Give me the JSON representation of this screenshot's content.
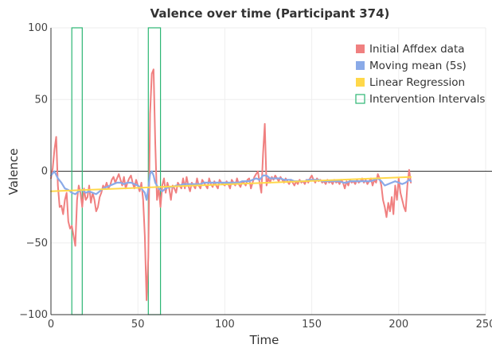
{
  "chart_data": {
    "type": "line",
    "title": "Valence over time (Participant 374)",
    "xlabel": "Time",
    "ylabel": "Valence",
    "xlim": [
      0,
      250
    ],
    "ylim": [
      -100,
      100
    ],
    "x_ticks": [
      0,
      50,
      100,
      150,
      200,
      250
    ],
    "x_tick_labels": [
      "0",
      "50",
      "100",
      "150",
      "200",
      "250"
    ],
    "y_ticks": [
      -100,
      -50,
      0,
      50,
      100
    ],
    "y_tick_labels": [
      "−100",
      "−50",
      "0",
      "50",
      "100"
    ],
    "grid": true,
    "legend_position": "top-right",
    "series": [
      {
        "name": "Initial Affdex data",
        "color": "#f08080",
        "style": "line",
        "points": [
          [
            0,
            -5
          ],
          [
            1,
            2
          ],
          [
            2,
            15
          ],
          [
            3,
            24
          ],
          [
            4,
            -10
          ],
          [
            5,
            -25
          ],
          [
            6,
            -24
          ],
          [
            7,
            -30
          ],
          [
            8,
            -20
          ],
          [
            9,
            -15
          ],
          [
            10,
            -35
          ],
          [
            11,
            -40
          ],
          [
            12,
            -38
          ],
          [
            13,
            -45
          ],
          [
            14,
            -52
          ],
          [
            15,
            -20
          ],
          [
            16,
            -10
          ],
          [
            17,
            -15
          ],
          [
            18,
            -25
          ],
          [
            19,
            -12
          ],
          [
            20,
            -20
          ],
          [
            21,
            -18
          ],
          [
            22,
            -10
          ],
          [
            23,
            -22
          ],
          [
            24,
            -15
          ],
          [
            25,
            -20
          ],
          [
            26,
            -28
          ],
          [
            27,
            -25
          ],
          [
            28,
            -18
          ],
          [
            29,
            -15
          ],
          [
            30,
            -10
          ],
          [
            31,
            -12
          ],
          [
            32,
            -8
          ],
          [
            33,
            -12
          ],
          [
            34,
            -10
          ],
          [
            35,
            -6
          ],
          [
            36,
            -4
          ],
          [
            37,
            -8
          ],
          [
            38,
            -5
          ],
          [
            39,
            -2
          ],
          [
            40,
            -6
          ],
          [
            41,
            -10
          ],
          [
            42,
            -4
          ],
          [
            43,
            -12
          ],
          [
            44,
            -8
          ],
          [
            45,
            -5
          ],
          [
            46,
            -3
          ],
          [
            47,
            -8
          ],
          [
            48,
            -12
          ],
          [
            49,
            -6
          ],
          [
            50,
            -10
          ],
          [
            51,
            -14
          ],
          [
            52,
            -8
          ],
          [
            53,
            -20
          ],
          [
            54,
            -45
          ],
          [
            55,
            -90
          ],
          [
            56,
            -60
          ],
          [
            57,
            40
          ],
          [
            58,
            68
          ],
          [
            59,
            71
          ],
          [
            60,
            20
          ],
          [
            61,
            -20
          ],
          [
            62,
            -12
          ],
          [
            63,
            -25
          ],
          [
            64,
            -10
          ],
          [
            65,
            -5
          ],
          [
            66,
            -15
          ],
          [
            67,
            -8
          ],
          [
            68,
            -12
          ],
          [
            69,
            -20
          ],
          [
            70,
            -10
          ],
          [
            71,
            -12
          ],
          [
            72,
            -15
          ],
          [
            73,
            -8
          ],
          [
            74,
            -10
          ],
          [
            75,
            -12
          ],
          [
            76,
            -5
          ],
          [
            77,
            -12
          ],
          [
            78,
            -4
          ],
          [
            79,
            -10
          ],
          [
            80,
            -14
          ],
          [
            81,
            -8
          ],
          [
            82,
            -10
          ],
          [
            83,
            -12
          ],
          [
            84,
            -5
          ],
          [
            85,
            -10
          ],
          [
            86,
            -12
          ],
          [
            87,
            -6
          ],
          [
            88,
            -8
          ],
          [
            89,
            -10
          ],
          [
            90,
            -12
          ],
          [
            91,
            -5
          ],
          [
            92,
            -9
          ],
          [
            93,
            -11
          ],
          [
            94,
            -7
          ],
          [
            95,
            -10
          ],
          [
            96,
            -12
          ],
          [
            97,
            -6
          ],
          [
            98,
            -8
          ],
          [
            99,
            -9
          ],
          [
            100,
            -10
          ],
          [
            101,
            -7
          ],
          [
            102,
            -9
          ],
          [
            103,
            -12
          ],
          [
            104,
            -6
          ],
          [
            105,
            -8
          ],
          [
            106,
            -10
          ],
          [
            107,
            -5
          ],
          [
            108,
            -9
          ],
          [
            109,
            -11
          ],
          [
            110,
            -7
          ],
          [
            111,
            -8
          ],
          [
            112,
            -10
          ],
          [
            113,
            -6
          ],
          [
            114,
            -5
          ],
          [
            115,
            -12
          ],
          [
            116,
            -8
          ],
          [
            117,
            -4
          ],
          [
            118,
            -2
          ],
          [
            119,
            0
          ],
          [
            120,
            -8
          ],
          [
            121,
            -15
          ],
          [
            122,
            12
          ],
          [
            123,
            33
          ],
          [
            124,
            -10
          ],
          [
            125,
            -5
          ],
          [
            126,
            -8
          ],
          [
            127,
            -4
          ],
          [
            128,
            -6
          ],
          [
            129,
            -3
          ],
          [
            130,
            -5
          ],
          [
            131,
            -7
          ],
          [
            132,
            -4
          ],
          [
            133,
            -6
          ],
          [
            134,
            -8
          ],
          [
            135,
            -5
          ],
          [
            136,
            -7
          ],
          [
            137,
            -9
          ],
          [
            138,
            -6
          ],
          [
            139,
            -8
          ],
          [
            140,
            -10
          ],
          [
            141,
            -7
          ],
          [
            142,
            -9
          ],
          [
            143,
            -6
          ],
          [
            144,
            -8
          ],
          [
            145,
            -7
          ],
          [
            146,
            -9
          ],
          [
            147,
            -6
          ],
          [
            148,
            -8
          ],
          [
            149,
            -5
          ],
          [
            150,
            -3
          ],
          [
            151,
            -6
          ],
          [
            152,
            -8
          ],
          [
            153,
            -5
          ],
          [
            154,
            -7
          ],
          [
            155,
            -6
          ],
          [
            156,
            -8
          ],
          [
            157,
            -7
          ],
          [
            158,
            -9
          ],
          [
            159,
            -6
          ],
          [
            160,
            -8
          ],
          [
            161,
            -7
          ],
          [
            162,
            -9
          ],
          [
            163,
            -6
          ],
          [
            164,
            -8
          ],
          [
            165,
            -7
          ],
          [
            166,
            -9
          ],
          [
            167,
            -6
          ],
          [
            168,
            -8
          ],
          [
            169,
            -12
          ],
          [
            170,
            -7
          ],
          [
            171,
            -10
          ],
          [
            172,
            -6
          ],
          [
            173,
            -8
          ],
          [
            174,
            -7
          ],
          [
            175,
            -9
          ],
          [
            176,
            -6
          ],
          [
            177,
            -8
          ],
          [
            178,
            -7
          ],
          [
            179,
            -5
          ],
          [
            180,
            -8
          ],
          [
            181,
            -6
          ],
          [
            182,
            -9
          ],
          [
            183,
            -7
          ],
          [
            184,
            -5
          ],
          [
            185,
            -10
          ],
          [
            186,
            -6
          ],
          [
            187,
            -8
          ],
          [
            188,
            -2
          ],
          [
            189,
            -5
          ],
          [
            190,
            -10
          ],
          [
            191,
            -20
          ],
          [
            192,
            -25
          ],
          [
            193,
            -32
          ],
          [
            194,
            -22
          ],
          [
            195,
            -28
          ],
          [
            196,
            -18
          ],
          [
            197,
            -30
          ],
          [
            198,
            -10
          ],
          [
            199,
            -20
          ],
          [
            200,
            -5
          ],
          [
            201,
            -15
          ],
          [
            202,
            -20
          ],
          [
            203,
            -25
          ],
          [
            204,
            -28
          ],
          [
            205,
            -10
          ],
          [
            206,
            1
          ],
          [
            207,
            -8
          ]
        ]
      },
      {
        "name": "Moving mean (5s)",
        "color": "#8aaae8",
        "style": "line",
        "points": [
          [
            0,
            -3
          ],
          [
            2,
            0
          ],
          [
            4,
            -5
          ],
          [
            6,
            -8
          ],
          [
            8,
            -12
          ],
          [
            10,
            -13
          ],
          [
            12,
            -15
          ],
          [
            14,
            -16
          ],
          [
            16,
            -14
          ],
          [
            18,
            -13
          ],
          [
            20,
            -15
          ],
          [
            22,
            -14
          ],
          [
            24,
            -15
          ],
          [
            26,
            -16
          ],
          [
            28,
            -14
          ],
          [
            30,
            -12
          ],
          [
            32,
            -11
          ],
          [
            34,
            -10
          ],
          [
            36,
            -9
          ],
          [
            38,
            -8
          ],
          [
            40,
            -8
          ],
          [
            42,
            -9
          ],
          [
            44,
            -8
          ],
          [
            46,
            -8
          ],
          [
            48,
            -9
          ],
          [
            50,
            -10
          ],
          [
            52,
            -12
          ],
          [
            54,
            -15
          ],
          [
            55,
            -20
          ],
          [
            56,
            -12
          ],
          [
            57,
            -2
          ],
          [
            58,
            0
          ],
          [
            59,
            -3
          ],
          [
            60,
            -8
          ],
          [
            62,
            -12
          ],
          [
            64,
            -14
          ],
          [
            66,
            -12
          ],
          [
            68,
            -11
          ],
          [
            70,
            -11
          ],
          [
            72,
            -10
          ],
          [
            74,
            -10
          ],
          [
            76,
            -9
          ],
          [
            78,
            -9
          ],
          [
            80,
            -9
          ],
          [
            82,
            -9
          ],
          [
            84,
            -9
          ],
          [
            86,
            -9
          ],
          [
            88,
            -8
          ],
          [
            90,
            -8
          ],
          [
            92,
            -8
          ],
          [
            94,
            -8
          ],
          [
            96,
            -8
          ],
          [
            98,
            -8
          ],
          [
            100,
            -8
          ],
          [
            102,
            -8
          ],
          [
            104,
            -8
          ],
          [
            106,
            -8
          ],
          [
            108,
            -8
          ],
          [
            110,
            -7
          ],
          [
            112,
            -7
          ],
          [
            114,
            -7
          ],
          [
            116,
            -6
          ],
          [
            118,
            -5
          ],
          [
            120,
            -6
          ],
          [
            122,
            -3
          ],
          [
            124,
            -3
          ],
          [
            126,
            -5
          ],
          [
            128,
            -5
          ],
          [
            130,
            -5
          ],
          [
            132,
            -5
          ],
          [
            134,
            -6
          ],
          [
            136,
            -6
          ],
          [
            138,
            -6
          ],
          [
            140,
            -7
          ],
          [
            142,
            -7
          ],
          [
            144,
            -7
          ],
          [
            146,
            -7
          ],
          [
            148,
            -6
          ],
          [
            150,
            -6
          ],
          [
            152,
            -6
          ],
          [
            154,
            -6
          ],
          [
            156,
            -7
          ],
          [
            158,
            -7
          ],
          [
            160,
            -7
          ],
          [
            162,
            -7
          ],
          [
            164,
            -7
          ],
          [
            166,
            -7
          ],
          [
            168,
            -8
          ],
          [
            170,
            -8
          ],
          [
            172,
            -7
          ],
          [
            174,
            -7
          ],
          [
            176,
            -7
          ],
          [
            178,
            -7
          ],
          [
            180,
            -7
          ],
          [
            182,
            -7
          ],
          [
            184,
            -7
          ],
          [
            186,
            -6
          ],
          [
            188,
            -5
          ],
          [
            190,
            -7
          ],
          [
            192,
            -10
          ],
          [
            194,
            -9
          ],
          [
            196,
            -8
          ],
          [
            198,
            -7
          ],
          [
            200,
            -8
          ],
          [
            202,
            -9
          ],
          [
            204,
            -8
          ],
          [
            206,
            -6
          ],
          [
            207,
            -7
          ]
        ]
      },
      {
        "name": "Linear Regression",
        "color": "#ffd84a",
        "style": "line",
        "points": [
          [
            0,
            -14
          ],
          [
            207,
            -4
          ]
        ]
      }
    ],
    "intervention_intervals": {
      "name": "Intervention Intervals",
      "color": "#2bb673",
      "intervals": [
        [
          12,
          18
        ],
        [
          56,
          63
        ]
      ]
    }
  }
}
